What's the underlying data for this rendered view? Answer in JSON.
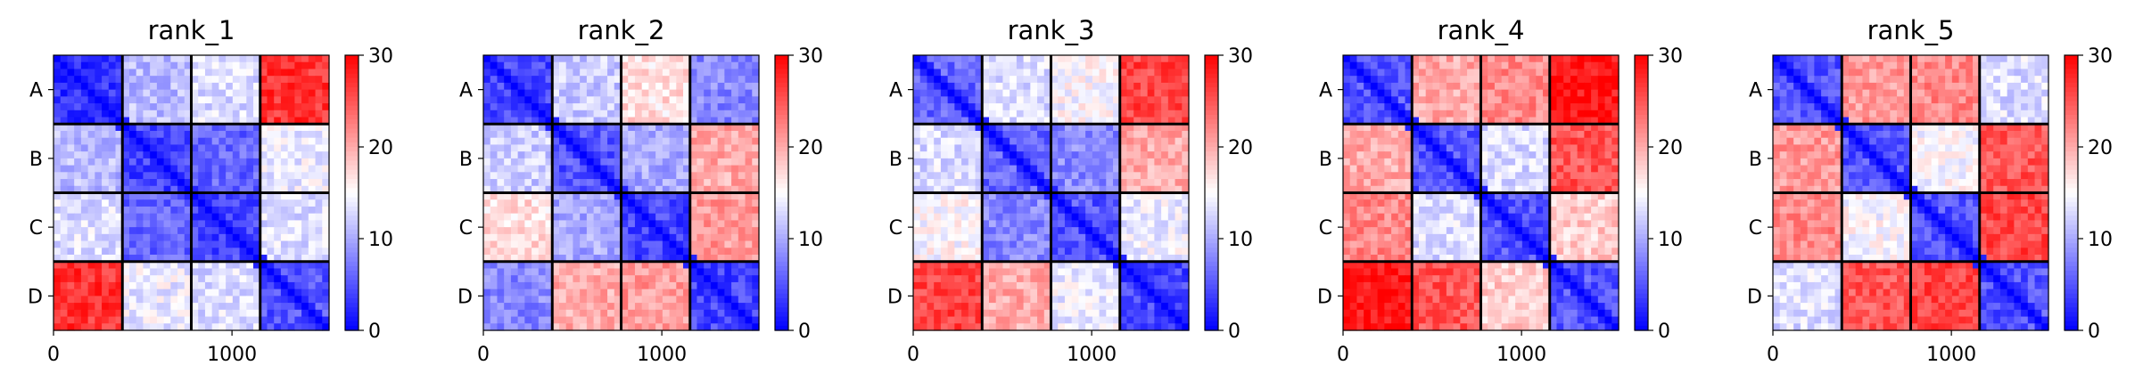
{
  "chart_data": [
    {
      "type": "heatmap",
      "title": "rank_1",
      "block_labels": [
        "A",
        "B",
        "C",
        "D"
      ],
      "block_values": [
        [
          3,
          11,
          13,
          27
        ],
        [
          11,
          4,
          6,
          14
        ],
        [
          13,
          6,
          4,
          13
        ],
        [
          27,
          14,
          13,
          5
        ]
      ],
      "xticks": [
        0,
        1000
      ],
      "xlim": [
        0,
        1544
      ],
      "colorbar": {
        "min": 0,
        "max": 30,
        "ticks": [
          0,
          10,
          20,
          30
        ]
      }
    },
    {
      "type": "heatmap",
      "title": "rank_2",
      "block_labels": [
        "A",
        "B",
        "C",
        "D"
      ],
      "block_values": [
        [
          4,
          12,
          17,
          8
        ],
        [
          12,
          5,
          10,
          20
        ],
        [
          17,
          10,
          4,
          21
        ],
        [
          8,
          20,
          21,
          4
        ]
      ],
      "xticks": [
        0,
        1000
      ],
      "xlim": [
        0,
        1544
      ],
      "colorbar": {
        "min": 0,
        "max": 30,
        "ticks": [
          0,
          10,
          20,
          30
        ]
      }
    },
    {
      "type": "heatmap",
      "title": "rank_3",
      "block_labels": [
        "A",
        "B",
        "C",
        "D"
      ],
      "block_values": [
        [
          6,
          13,
          15,
          26
        ],
        [
          13,
          6,
          8,
          20
        ],
        [
          15,
          8,
          5,
          14
        ],
        [
          26,
          20,
          14,
          4
        ]
      ],
      "xticks": [
        0,
        1000
      ],
      "xlim": [
        0,
        1544
      ],
      "colorbar": {
        "min": 0,
        "max": 30,
        "ticks": [
          0,
          10,
          20,
          30
        ]
      }
    },
    {
      "type": "heatmap",
      "title": "rank_4",
      "block_labels": [
        "A",
        "B",
        "C",
        "D"
      ],
      "block_values": [
        [
          5,
          20,
          22,
          29
        ],
        [
          20,
          5,
          13,
          25
        ],
        [
          22,
          13,
          5,
          18
        ],
        [
          29,
          25,
          18,
          5
        ]
      ],
      "xticks": [
        0,
        1000
      ],
      "xlim": [
        0,
        1544
      ],
      "colorbar": {
        "min": 0,
        "max": 30,
        "ticks": [
          0,
          10,
          20,
          30
        ]
      }
    },
    {
      "type": "heatmap",
      "title": "rank_5",
      "block_labels": [
        "A",
        "B",
        "C",
        "D"
      ],
      "block_values": [
        [
          5,
          21,
          22,
          13
        ],
        [
          21,
          5,
          15,
          25
        ],
        [
          22,
          15,
          5,
          26
        ],
        [
          13,
          25,
          26,
          5
        ]
      ],
      "xticks": [
        0,
        1000
      ],
      "xlim": [
        0,
        1544
      ],
      "colorbar": {
        "min": 0,
        "max": 30,
        "ticks": [
          0,
          10,
          20,
          30
        ]
      }
    }
  ]
}
